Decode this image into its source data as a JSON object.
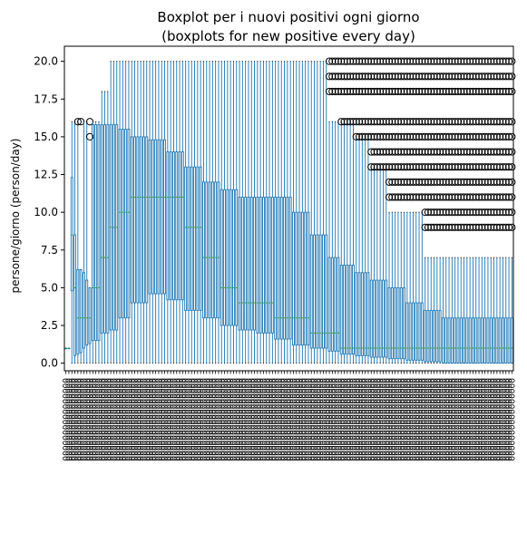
{
  "chart_data": {
    "type": "boxplot",
    "title": "Boxplot per i nuovi positivi ogni giorno",
    "subtitle": "(boxplots for new positive every day)",
    "xlabel": "",
    "ylabel": "persone/giorno (person/day)",
    "ylim": [
      -0.5,
      21.0
    ],
    "yticks": [
      0.0,
      2.5,
      5.0,
      7.5,
      10.0,
      12.5,
      15.0,
      17.5,
      20.0
    ],
    "ytick_labels": [
      "0.0",
      "2.5",
      "5.0",
      "7.5",
      "10.0",
      "12.5",
      "15.0",
      "17.5",
      "20.0"
    ],
    "grid": false,
    "box_count": 150,
    "x_tick_label_pattern": "0000000000000000",
    "colors": {
      "box": "#1f77b4",
      "median": "#2ca02c",
      "whisker": "#1f77b4",
      "cap": "#000000",
      "flier": "#000000"
    },
    "segments": [
      {
        "from": 0,
        "to": 2,
        "min": 1,
        "q1": 1,
        "median": 1,
        "q3": 1,
        "max": 1,
        "fliers": []
      },
      {
        "from": 2,
        "to": 3,
        "min": 0,
        "q1": 4.8,
        "median": 8.5,
        "q3": 12.3,
        "max": 16,
        "fliers": []
      },
      {
        "from": 3,
        "to": 4,
        "min": 0,
        "q1": 0.5,
        "median": 5,
        "q3": 8.5,
        "max": 16,
        "fliers": []
      },
      {
        "from": 4,
        "to": 5,
        "min": 0,
        "q1": 0.6,
        "median": 3,
        "q3": 6.2,
        "max": 16,
        "fliers": [
          16
        ]
      },
      {
        "from": 5,
        "to": 6,
        "min": 0,
        "q1": 0.7,
        "median": 3,
        "q3": 6.2,
        "max": 6.2,
        "fliers": [
          16
        ]
      },
      {
        "from": 6,
        "to": 7,
        "min": 0,
        "q1": 1.0,
        "median": 3,
        "q3": 6.0,
        "max": 16,
        "fliers": []
      },
      {
        "from": 7,
        "to": 8,
        "min": 0,
        "q1": 1.2,
        "median": 3,
        "q3": 5.5,
        "max": 16,
        "fliers": []
      },
      {
        "from": 8,
        "to": 9,
        "min": 0,
        "q1": 1.3,
        "median": 3,
        "q3": 5.0,
        "max": 5.0,
        "fliers": [
          16,
          15
        ]
      },
      {
        "from": 9,
        "to": 12,
        "min": 0,
        "q1": 1.5,
        "median": 5,
        "q3": 15.8,
        "max": 16,
        "fliers": []
      },
      {
        "from": 12,
        "to": 15,
        "min": 0,
        "q1": 2.0,
        "median": 7,
        "q3": 15.8,
        "max": 18,
        "fliers": []
      },
      {
        "from": 15,
        "to": 18,
        "min": 0,
        "q1": 2.2,
        "median": 9,
        "q3": 15.8,
        "max": 20,
        "fliers": []
      },
      {
        "from": 18,
        "to": 22,
        "min": 0,
        "q1": 3.0,
        "median": 10,
        "q3": 15.5,
        "max": 20,
        "fliers": []
      },
      {
        "from": 22,
        "to": 28,
        "min": 0,
        "q1": 4.0,
        "median": 11,
        "q3": 15.0,
        "max": 20,
        "fliers": []
      },
      {
        "from": 28,
        "to": 34,
        "min": 0,
        "q1": 4.6,
        "median": 11,
        "q3": 14.8,
        "max": 20,
        "fliers": []
      },
      {
        "from": 34,
        "to": 40,
        "min": 0,
        "q1": 4.2,
        "median": 11,
        "q3": 14.0,
        "max": 20,
        "fliers": []
      },
      {
        "from": 40,
        "to": 46,
        "min": 0,
        "q1": 3.5,
        "median": 9,
        "q3": 13.0,
        "max": 20,
        "fliers": []
      },
      {
        "from": 46,
        "to": 52,
        "min": 0,
        "q1": 3.0,
        "median": 7,
        "q3": 12.0,
        "max": 20,
        "fliers": []
      },
      {
        "from": 52,
        "to": 58,
        "min": 0,
        "q1": 2.5,
        "median": 5,
        "q3": 11.5,
        "max": 20,
        "fliers": []
      },
      {
        "from": 58,
        "to": 64,
        "min": 0,
        "q1": 2.2,
        "median": 4,
        "q3": 11.0,
        "max": 20,
        "fliers": []
      },
      {
        "from": 64,
        "to": 70,
        "min": 0,
        "q1": 2.0,
        "median": 4,
        "q3": 11.0,
        "max": 20,
        "fliers": []
      },
      {
        "from": 70,
        "to": 76,
        "min": 0,
        "q1": 1.6,
        "median": 3,
        "q3": 11.0,
        "max": 20,
        "fliers": []
      },
      {
        "from": 76,
        "to": 82,
        "min": 0,
        "q1": 1.2,
        "median": 3,
        "q3": 10.0,
        "max": 20,
        "fliers": []
      },
      {
        "from": 82,
        "to": 88,
        "min": 0,
        "q1": 1.0,
        "median": 2,
        "q3": 8.5,
        "max": 20,
        "fliers": []
      },
      {
        "from": 88,
        "to": 92,
        "min": 0,
        "q1": 0.8,
        "median": 2,
        "q3": 7.0,
        "max": 16,
        "fliers": [
          20,
          19,
          18
        ]
      },
      {
        "from": 92,
        "to": 97,
        "min": 0,
        "q1": 0.6,
        "median": 1,
        "q3": 6.5,
        "max": 16,
        "fliers": [
          20,
          19,
          18,
          16
        ]
      },
      {
        "from": 97,
        "to": 102,
        "min": 0,
        "q1": 0.5,
        "median": 1,
        "q3": 6.0,
        "max": 15,
        "fliers": [
          20,
          19,
          18,
          16,
          15
        ]
      },
      {
        "from": 102,
        "to": 108,
        "min": 0,
        "q1": 0.4,
        "median": 1,
        "q3": 5.5,
        "max": 13,
        "fliers": [
          20,
          19,
          18,
          16,
          15,
          14,
          13
        ]
      },
      {
        "from": 108,
        "to": 114,
        "min": 0,
        "q1": 0.3,
        "median": 1,
        "q3": 5.0,
        "max": 10,
        "fliers": [
          20,
          19,
          18,
          16,
          15,
          14,
          13,
          12,
          11
        ]
      },
      {
        "from": 114,
        "to": 120,
        "min": 0,
        "q1": 0.2,
        "median": 1,
        "q3": 4.0,
        "max": 10,
        "fliers": [
          20,
          19,
          18,
          16,
          15,
          14,
          13,
          12,
          11
        ]
      },
      {
        "from": 120,
        "to": 126,
        "min": 0,
        "q1": 0.1,
        "median": 1,
        "q3": 3.5,
        "max": 7,
        "fliers": [
          20,
          19,
          18,
          16,
          15,
          14,
          13,
          12,
          11,
          10,
          9
        ]
      },
      {
        "from": 126,
        "to": 150,
        "min": 0,
        "q1": 0.0,
        "median": 1,
        "q3": 3.0,
        "max": 7,
        "fliers": [
          20,
          19,
          18,
          16,
          15,
          14,
          13,
          12,
          11,
          10,
          9
        ]
      }
    ]
  }
}
